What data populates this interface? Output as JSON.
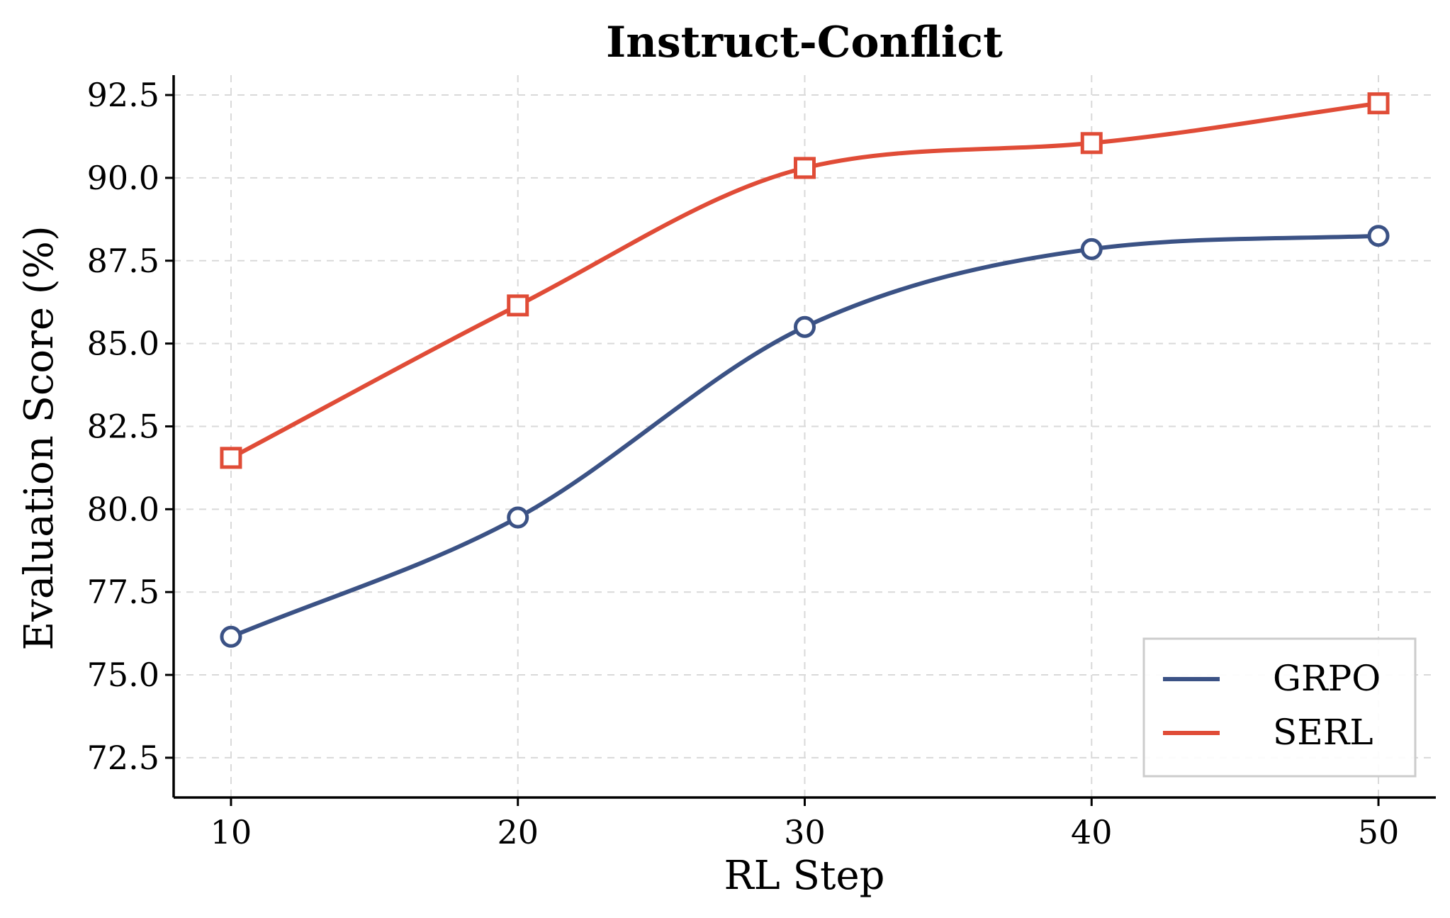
{
  "chart_data": {
    "type": "line",
    "title": "Instruct-Conflict",
    "xlabel": "RL Step",
    "ylabel": "Evaluation Score (%)",
    "x": [
      10,
      20,
      30,
      40,
      50
    ],
    "xticks": [
      "10",
      "20",
      "30",
      "40",
      "50"
    ],
    "yticks": [
      "72.5",
      "75.0",
      "77.5",
      "80.0",
      "82.5",
      "85.0",
      "87.5",
      "90.0",
      "92.5"
    ],
    "xlim": [
      8,
      52
    ],
    "ylim": [
      71.3,
      93.1
    ],
    "grid": true,
    "legend_position": "lower-right",
    "series": [
      {
        "name": "GRPO",
        "values": [
          76.15,
          79.75,
          85.5,
          87.85,
          88.25
        ],
        "color": "#3b5285",
        "marker": "circle"
      },
      {
        "name": "SERL",
        "values": [
          81.55,
          86.15,
          90.3,
          91.05,
          92.25
        ],
        "color": "#e04c37",
        "marker": "square"
      }
    ]
  }
}
